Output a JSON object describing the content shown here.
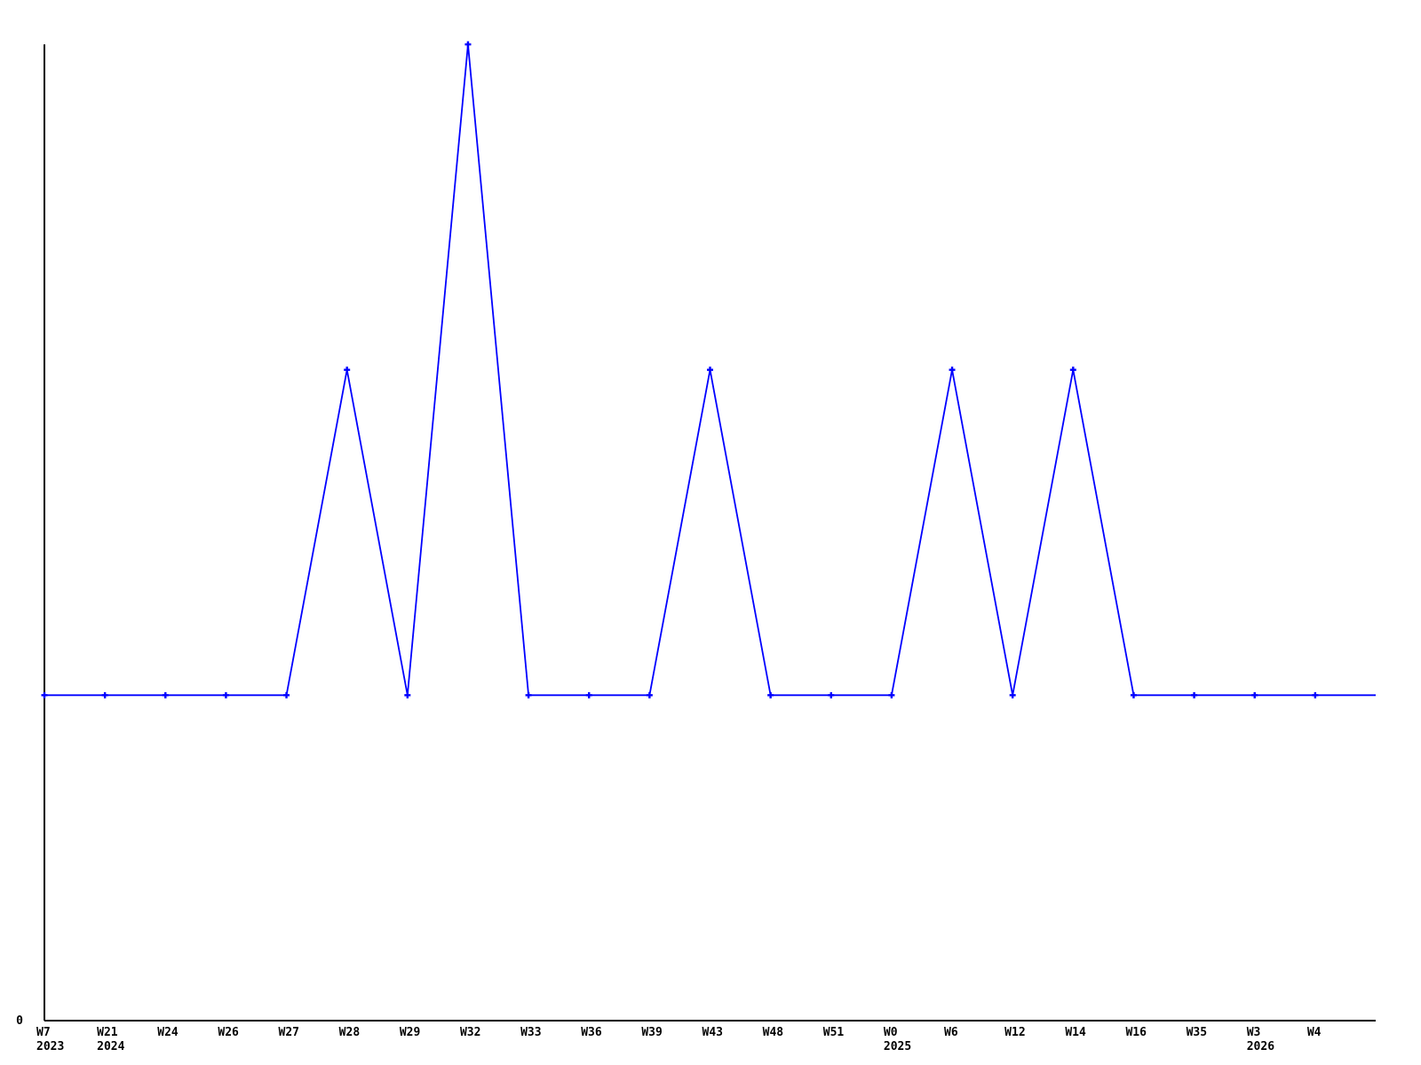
{
  "chart_data": {
    "type": "line",
    "title": "",
    "legend": null,
    "grid": false,
    "line_color": "#0000ff",
    "axis_color": "#000000",
    "text_color": "#000000",
    "marker": "plus",
    "y_axis": {
      "zero_label": "0",
      "ylim": [
        0,
        3
      ]
    },
    "points": [
      {
        "week": "W7",
        "year": "2023",
        "value": 1
      },
      {
        "week": "W21",
        "year": "2024",
        "value": 1
      },
      {
        "week": "W24",
        "year": "",
        "value": 1
      },
      {
        "week": "W26",
        "year": "",
        "value": 1
      },
      {
        "week": "W27",
        "year": "",
        "value": 1
      },
      {
        "week": "W28",
        "year": "",
        "value": 2
      },
      {
        "week": "W29",
        "year": "",
        "value": 1
      },
      {
        "week": "W32",
        "year": "",
        "value": 3
      },
      {
        "week": "W33",
        "year": "",
        "value": 1
      },
      {
        "week": "W36",
        "year": "",
        "value": 1
      },
      {
        "week": "W39",
        "year": "",
        "value": 1
      },
      {
        "week": "W43",
        "year": "",
        "value": 2
      },
      {
        "week": "W48",
        "year": "",
        "value": 1
      },
      {
        "week": "W51",
        "year": "",
        "value": 1
      },
      {
        "week": "W0",
        "year": "2025",
        "value": 1
      },
      {
        "week": "W6",
        "year": "",
        "value": 2
      },
      {
        "week": "W12",
        "year": "",
        "value": 1
      },
      {
        "week": "W14",
        "year": "",
        "value": 2
      },
      {
        "week": "W16",
        "year": "",
        "value": 1
      },
      {
        "week": "W35",
        "year": "",
        "value": 1
      },
      {
        "week": "W3",
        "year": "2026",
        "value": 1
      },
      {
        "week": "W4",
        "year": "",
        "value": 1
      }
    ],
    "trailing_unlabeled_point": {
      "value": 1
    }
  }
}
